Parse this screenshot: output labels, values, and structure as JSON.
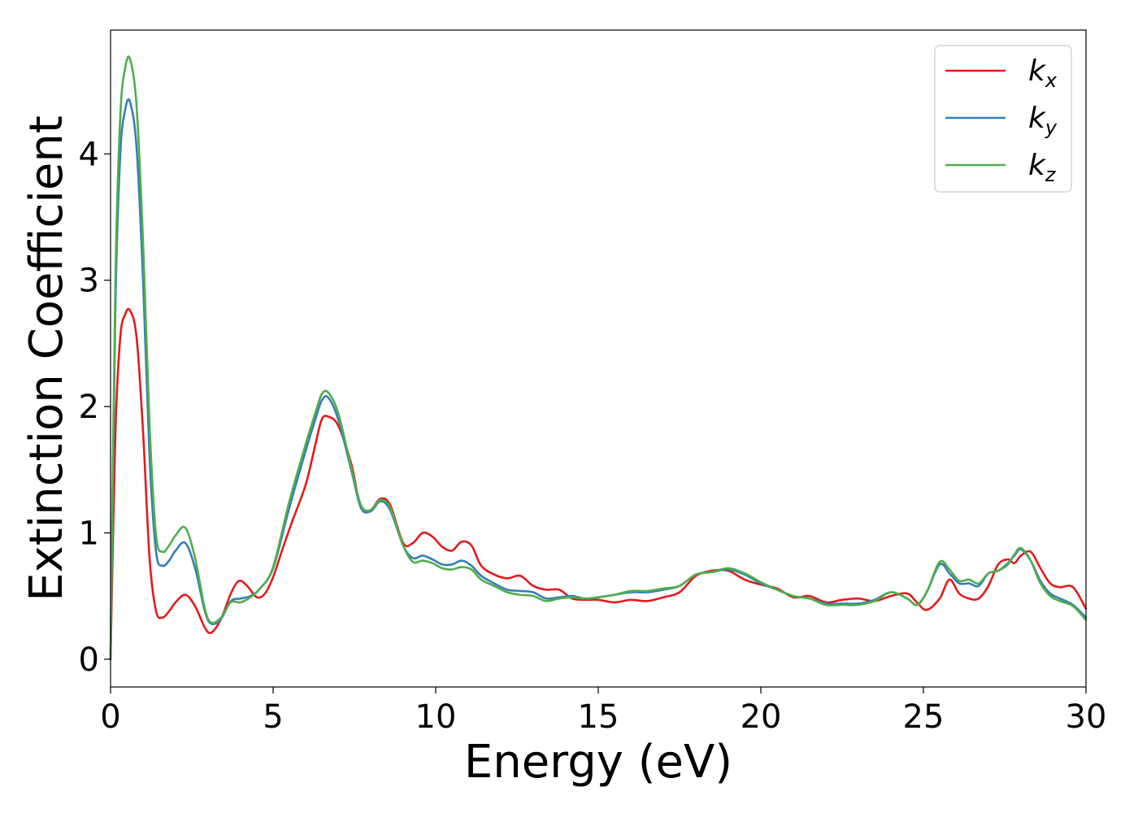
{
  "chart_data": {
    "type": "line",
    "title": "",
    "xlabel": "Energy (eV)",
    "ylabel": "Extinction Coefficient",
    "xlim": [
      0,
      30
    ],
    "ylim": [
      -0.22,
      4.98
    ],
    "xticks": [
      0,
      5,
      10,
      15,
      20,
      25,
      30
    ],
    "yticks": [
      0,
      1,
      2,
      3,
      4
    ],
    "grid": false,
    "legend_position": "top-right",
    "series": [
      {
        "name": "k_x",
        "label_main": "k",
        "label_sub": "x",
        "color": "#e41a1c",
        "x": [
          0,
          0.15,
          0.3,
          0.45,
          0.6,
          0.8,
          1.0,
          1.2,
          1.4,
          1.6,
          1.8,
          2.0,
          2.3,
          2.6,
          2.9,
          3.1,
          3.4,
          3.7,
          3.95,
          4.2,
          4.5,
          4.75,
          5.0,
          5.3,
          5.6,
          6.0,
          6.3,
          6.5,
          6.7,
          7.0,
          7.4,
          7.7,
          8.0,
          8.3,
          8.6,
          9.0,
          9.3,
          9.6,
          9.9,
          10.2,
          10.5,
          10.8,
          11.1,
          11.4,
          11.8,
          12.2,
          12.6,
          13.0,
          13.4,
          13.8,
          14.2,
          14.6,
          15.0,
          15.5,
          16.0,
          16.5,
          17.0,
          17.5,
          18.0,
          18.5,
          19.0,
          19.5,
          20.0,
          20.5,
          21.0,
          21.5,
          22.0,
          22.5,
          23.0,
          23.5,
          24.0,
          24.5,
          24.8,
          25.1,
          25.5,
          25.8,
          26.1,
          26.4,
          26.7,
          27.0,
          27.3,
          27.6,
          27.8,
          28.0,
          28.3,
          28.6,
          28.9,
          29.2,
          29.6,
          30.0
        ],
        "values": [
          0.0,
          1.8,
          2.55,
          2.73,
          2.76,
          2.55,
          1.8,
          0.8,
          0.38,
          0.33,
          0.38,
          0.45,
          0.51,
          0.42,
          0.25,
          0.21,
          0.32,
          0.52,
          0.62,
          0.58,
          0.49,
          0.52,
          0.65,
          0.88,
          1.1,
          1.38,
          1.7,
          1.9,
          1.92,
          1.85,
          1.55,
          1.2,
          1.18,
          1.27,
          1.22,
          0.92,
          0.92,
          1.0,
          0.97,
          0.89,
          0.86,
          0.93,
          0.9,
          0.74,
          0.67,
          0.64,
          0.66,
          0.58,
          0.55,
          0.55,
          0.48,
          0.47,
          0.47,
          0.45,
          0.47,
          0.46,
          0.49,
          0.53,
          0.66,
          0.7,
          0.7,
          0.63,
          0.59,
          0.56,
          0.49,
          0.5,
          0.45,
          0.47,
          0.48,
          0.46,
          0.5,
          0.52,
          0.45,
          0.39,
          0.48,
          0.63,
          0.52,
          0.48,
          0.48,
          0.58,
          0.75,
          0.79,
          0.76,
          0.82,
          0.85,
          0.72,
          0.6,
          0.57,
          0.57,
          0.4
        ]
      },
      {
        "name": "k_y",
        "label_main": "k",
        "label_sub": "y",
        "color": "#377eb8",
        "x": [
          0,
          0.15,
          0.3,
          0.45,
          0.6,
          0.8,
          1.0,
          1.2,
          1.4,
          1.6,
          1.8,
          2.0,
          2.3,
          2.6,
          2.9,
          3.1,
          3.4,
          3.7,
          4.0,
          4.3,
          4.6,
          5.0,
          5.5,
          6.0,
          6.3,
          6.5,
          6.7,
          7.0,
          7.4,
          7.7,
          8.0,
          8.3,
          8.6,
          9.0,
          9.3,
          9.6,
          9.9,
          10.2,
          10.5,
          10.8,
          11.1,
          11.4,
          11.8,
          12.2,
          12.6,
          13.0,
          13.4,
          13.8,
          14.2,
          14.6,
          15.0,
          15.5,
          16.0,
          16.5,
          17.0,
          17.5,
          18.0,
          18.5,
          19.0,
          19.5,
          20.0,
          20.5,
          21.0,
          21.5,
          22.0,
          22.5,
          23.0,
          23.5,
          24.0,
          24.5,
          24.8,
          25.1,
          25.5,
          25.8,
          26.1,
          26.4,
          26.7,
          27.0,
          27.3,
          27.6,
          27.8,
          28.0,
          28.3,
          28.6,
          28.9,
          29.2,
          29.6,
          30.0
        ],
        "values": [
          0.0,
          2.8,
          4.0,
          4.35,
          4.41,
          4.05,
          3.0,
          1.6,
          0.85,
          0.74,
          0.78,
          0.86,
          0.92,
          0.72,
          0.38,
          0.28,
          0.32,
          0.46,
          0.48,
          0.5,
          0.56,
          0.72,
          1.2,
          1.65,
          1.9,
          2.05,
          2.07,
          1.9,
          1.5,
          1.2,
          1.17,
          1.25,
          1.18,
          0.9,
          0.8,
          0.82,
          0.79,
          0.75,
          0.75,
          0.78,
          0.74,
          0.66,
          0.6,
          0.55,
          0.54,
          0.53,
          0.48,
          0.49,
          0.5,
          0.48,
          0.49,
          0.51,
          0.53,
          0.53,
          0.55,
          0.58,
          0.67,
          0.69,
          0.71,
          0.67,
          0.6,
          0.55,
          0.5,
          0.48,
          0.44,
          0.44,
          0.44,
          0.47,
          0.53,
          0.48,
          0.43,
          0.53,
          0.75,
          0.68,
          0.6,
          0.6,
          0.58,
          0.68,
          0.7,
          0.76,
          0.82,
          0.87,
          0.78,
          0.62,
          0.52,
          0.48,
          0.43,
          0.33
        ]
      },
      {
        "name": "k_z",
        "label_main": "k",
        "label_sub": "z",
        "color": "#4daf4a",
        "x": [
          0,
          0.15,
          0.3,
          0.45,
          0.6,
          0.8,
          1.0,
          1.2,
          1.4,
          1.6,
          1.8,
          2.0,
          2.3,
          2.6,
          2.9,
          3.1,
          3.4,
          3.7,
          4.0,
          4.3,
          4.6,
          5.0,
          5.5,
          6.0,
          6.3,
          6.5,
          6.7,
          7.0,
          7.4,
          7.7,
          8.0,
          8.3,
          8.6,
          9.0,
          9.3,
          9.6,
          9.9,
          10.2,
          10.5,
          10.8,
          11.1,
          11.4,
          11.8,
          12.2,
          12.6,
          13.0,
          13.4,
          13.8,
          14.2,
          14.6,
          15.0,
          15.5,
          16.0,
          16.5,
          17.0,
          17.5,
          18.0,
          18.5,
          19.0,
          19.5,
          20.0,
          20.5,
          21.0,
          21.5,
          22.0,
          22.5,
          23.0,
          23.5,
          24.0,
          24.5,
          24.8,
          25.1,
          25.5,
          25.8,
          26.1,
          26.4,
          26.7,
          27.0,
          27.3,
          27.6,
          27.8,
          28.0,
          28.3,
          28.6,
          28.9,
          29.2,
          29.6,
          30.0
        ],
        "values": [
          0.0,
          3.0,
          4.3,
          4.68,
          4.75,
          4.38,
          3.3,
          1.85,
          0.98,
          0.85,
          0.9,
          0.98,
          1.04,
          0.8,
          0.4,
          0.29,
          0.33,
          0.45,
          0.45,
          0.49,
          0.56,
          0.73,
          1.25,
          1.7,
          1.95,
          2.1,
          2.11,
          1.95,
          1.52,
          1.22,
          1.18,
          1.26,
          1.2,
          0.9,
          0.77,
          0.78,
          0.76,
          0.72,
          0.71,
          0.73,
          0.71,
          0.63,
          0.58,
          0.53,
          0.51,
          0.5,
          0.46,
          0.48,
          0.49,
          0.48,
          0.49,
          0.51,
          0.54,
          0.54,
          0.56,
          0.58,
          0.67,
          0.69,
          0.72,
          0.68,
          0.61,
          0.55,
          0.5,
          0.48,
          0.43,
          0.43,
          0.43,
          0.46,
          0.53,
          0.48,
          0.43,
          0.53,
          0.77,
          0.71,
          0.62,
          0.63,
          0.6,
          0.68,
          0.7,
          0.75,
          0.83,
          0.88,
          0.78,
          0.6,
          0.5,
          0.46,
          0.42,
          0.31
        ]
      }
    ]
  }
}
